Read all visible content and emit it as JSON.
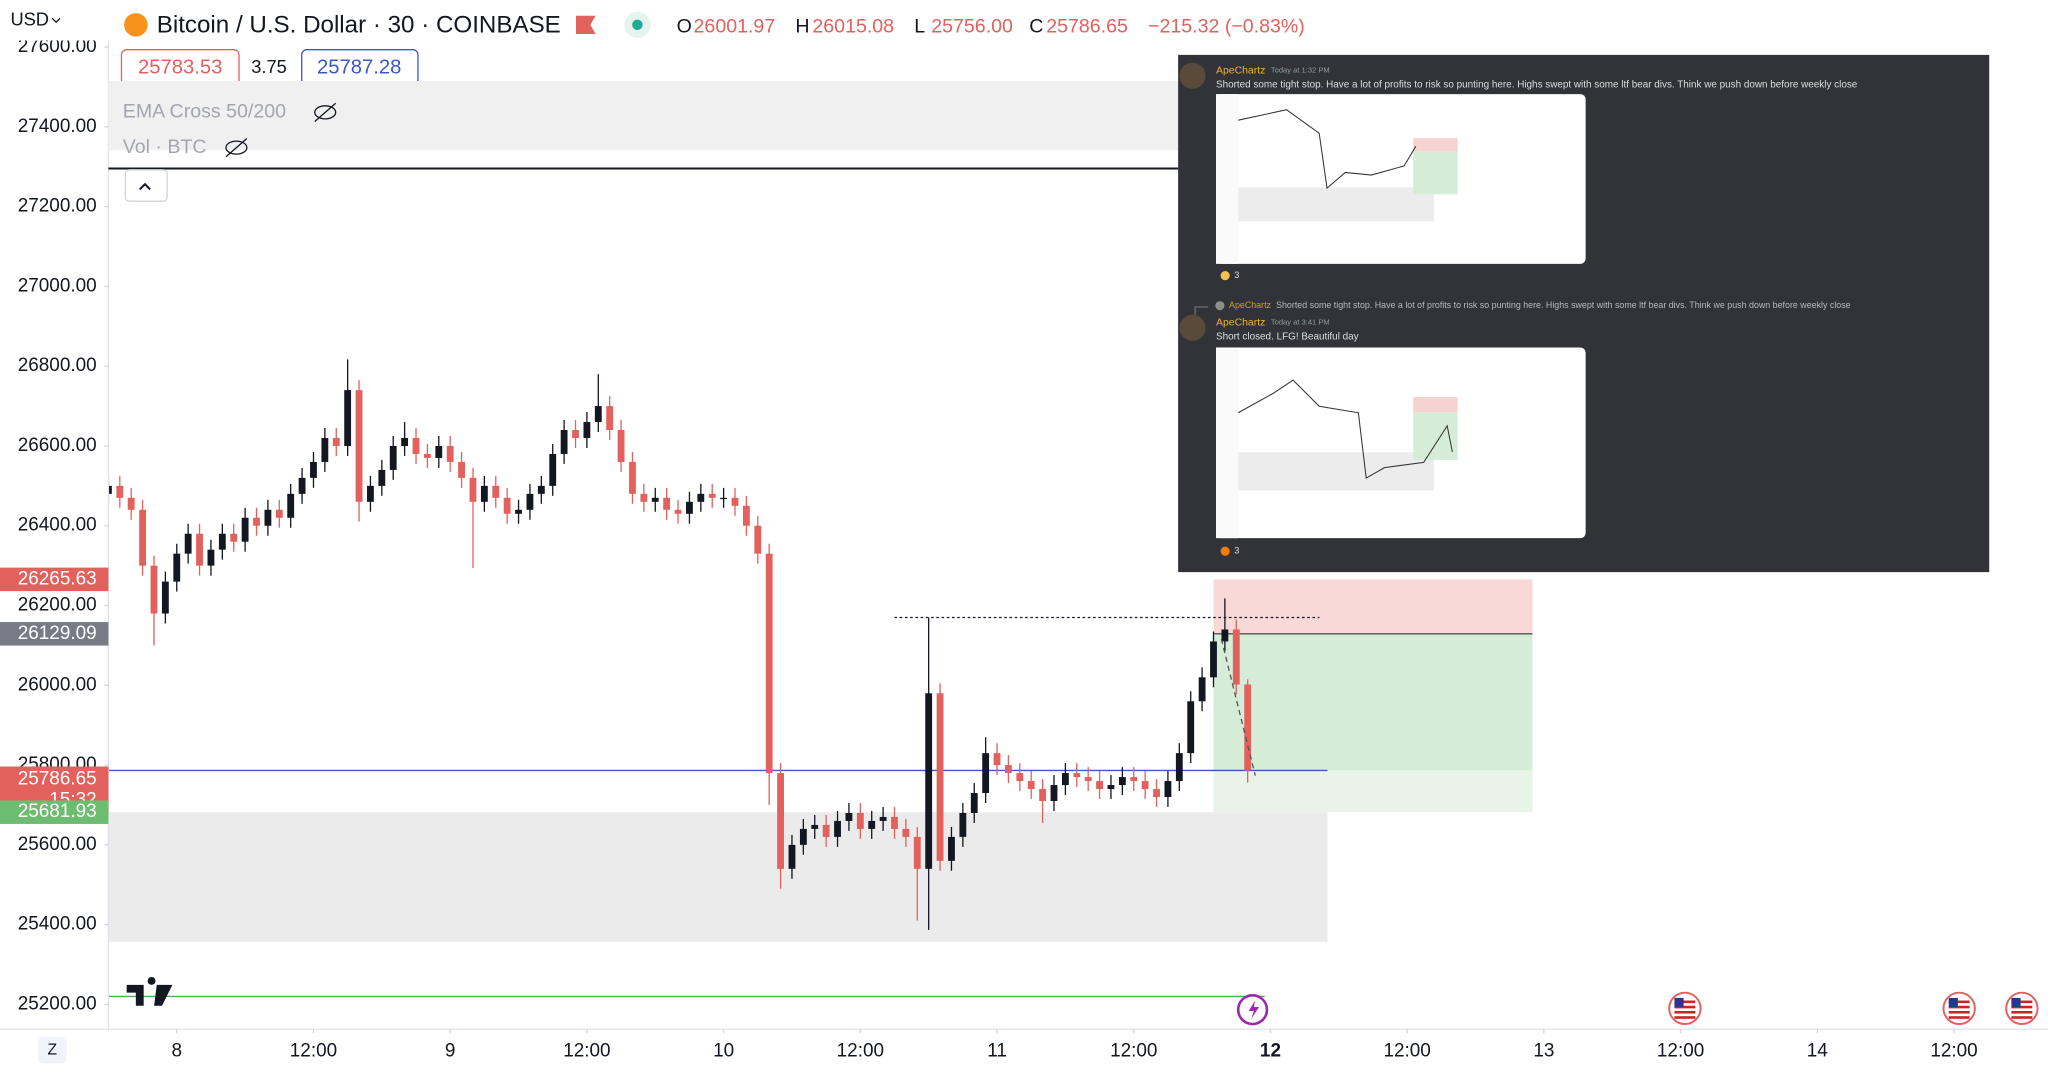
{
  "header": {
    "currency": "USD",
    "symbol": "Bitcoin / U.S. Dollar · 30 · COINBASE",
    "ohlc": [
      {
        "key": "O",
        "value": "26001.97"
      },
      {
        "key": "H",
        "value": "26015.08"
      },
      {
        "key": "L",
        "value": "25756.00"
      },
      {
        "key": "C",
        "value": "25786.65"
      }
    ],
    "change": "−215.32 (−0.83%)",
    "bid": "25783.53",
    "spread": "3.75",
    "ask": "25787.28",
    "indicators": [
      "EMA Cross 50/200",
      "Vol · BTC"
    ],
    "timezone_button": "Z"
  },
  "discord": {
    "messages": [
      {
        "author": "ApeChartz",
        "time": "Today at 1:32 PM",
        "text": "Shorted some tight stop. Have a lot of profits to risk so punting here. Highs swept with some ltf bear divs. Think we push down before weekly close",
        "reactions": "3"
      },
      {
        "reply_author": "ApeChartz",
        "reply_text": "Shorted some tight stop. Have a lot of profits to risk so punting here. Highs swept with some ltf bear divs. Think we push down before weekly close",
        "author": "ApeChartz",
        "time": "Today at 3:41 PM",
        "text": "Short closed. LFG! Beautiful day",
        "reactions": "3"
      }
    ]
  },
  "chart_data": {
    "type": "candlestick",
    "up_color": "#131722",
    "down_color": "#e2615d",
    "x": [
      -6,
      -5,
      -4,
      -3,
      -2,
      -1,
      0,
      1,
      2,
      3,
      4,
      5,
      6,
      7,
      8,
      9,
      10,
      11,
      12,
      13,
      14,
      15,
      16,
      17,
      18,
      19,
      20,
      21,
      22,
      23,
      24,
      25,
      26,
      27,
      28,
      29,
      30,
      31,
      32,
      33,
      34,
      35,
      36,
      37,
      38,
      39,
      40,
      41,
      42,
      43,
      44,
      45,
      46,
      47,
      48,
      49,
      50,
      51,
      52,
      53,
      54,
      55,
      56,
      57,
      58,
      59,
      60,
      61,
      62,
      63,
      64,
      65,
      66,
      67,
      68,
      69,
      70,
      71,
      72,
      73,
      74,
      75,
      76,
      77,
      78,
      79,
      80,
      81,
      82,
      83,
      84,
      85,
      86,
      87,
      88,
      89,
      90,
      91,
      92,
      93,
      94
    ],
    "open": [
      26480,
      26500,
      26470,
      26440,
      26300,
      26180,
      26260,
      26330,
      26380,
      26300,
      26340,
      26380,
      26360,
      26420,
      26400,
      26440,
      26420,
      26480,
      26520,
      26560,
      26620,
      26600,
      26740,
      26460,
      26500,
      26540,
      26600,
      26620,
      26580,
      26570,
      26600,
      26560,
      26520,
      26460,
      26500,
      26470,
      26430,
      26440,
      26480,
      26500,
      26580,
      26640,
      26620,
      26660,
      26700,
      26640,
      26560,
      26480,
      26460,
      26470,
      26440,
      26430,
      26460,
      26480,
      26470,
      26470,
      26450,
      26400,
      26330,
      25780,
      25540,
      25600,
      25640,
      25650,
      25620,
      25660,
      25680,
      25640,
      25660,
      25670,
      25640,
      25620,
      25540,
      25980,
      25560,
      25620,
      25680,
      25730,
      25830,
      25800,
      25780,
      25760,
      25740,
      25710,
      25750,
      25780,
      25770,
      25760,
      25740,
      25750,
      25770,
      25760,
      25740,
      25720,
      25760,
      25830,
      25960,
      26020,
      26110,
      26140,
      26001.97
    ],
    "high": [
      26525,
      26525,
      26495,
      26465,
      26325,
      26285,
      26355,
      26405,
      26405,
      26365,
      26405,
      26405,
      26445,
      26445,
      26465,
      26465,
      26505,
      26545,
      26585,
      26645,
      26645,
      26817,
      26765,
      26525,
      26565,
      26625,
      26660,
      26645,
      26605,
      26625,
      26625,
      26585,
      26545,
      26525,
      26525,
      26495,
      26465,
      26505,
      26525,
      26605,
      26665,
      26665,
      26685,
      26780,
      26725,
      26665,
      26585,
      26505,
      26495,
      26495,
      26465,
      26485,
      26505,
      26505,
      26495,
      26495,
      26475,
      26425,
      26355,
      25805,
      25625,
      25665,
      25675,
      25675,
      25685,
      25705,
      25705,
      25685,
      25695,
      25695,
      25665,
      25645,
      26170,
      26005,
      25645,
      25705,
      25755,
      25870,
      25855,
      25825,
      25805,
      25785,
      25765,
      25775,
      25805,
      25805,
      25795,
      25785,
      25775,
      25795,
      25795,
      25785,
      25765,
      25785,
      25855,
      25985,
      26045,
      26135,
      26218,
      26165,
      26015.08
    ],
    "low": [
      26455,
      26445,
      26415,
      26275,
      26100,
      26155,
      26235,
      26305,
      26275,
      26275,
      26315,
      26335,
      26335,
      26375,
      26375,
      26395,
      26395,
      26455,
      26495,
      26535,
      26575,
      26575,
      26410,
      26435,
      26475,
      26515,
      26575,
      26555,
      26545,
      26545,
      26535,
      26495,
      26294,
      26435,
      26445,
      26405,
      26405,
      26415,
      26455,
      26475,
      26555,
      26595,
      26595,
      26635,
      26615,
      26535,
      26455,
      26435,
      26435,
      26415,
      26405,
      26405,
      26435,
      26445,
      26445,
      26425,
      26375,
      26305,
      25700,
      25490,
      25515,
      25575,
      25615,
      25595,
      25595,
      25635,
      25615,
      25615,
      25635,
      25615,
      25595,
      25410,
      25387,
      25535,
      25535,
      25595,
      25655,
      25705,
      25775,
      25755,
      25735,
      25715,
      25655,
      25685,
      25725,
      25745,
      25735,
      25715,
      25715,
      25725,
      25735,
      25715,
      25695,
      25695,
      25735,
      25805,
      25935,
      25995,
      26085,
      25977,
      25756
    ],
    "close": [
      26500,
      26470,
      26440,
      26300,
      26180,
      26260,
      26330,
      26380,
      26300,
      26340,
      26380,
      26360,
      26420,
      26400,
      26440,
      26420,
      26480,
      26520,
      26560,
      26620,
      26600,
      26740,
      26460,
      26500,
      26540,
      26600,
      26620,
      26580,
      26570,
      26600,
      26560,
      26520,
      26460,
      26500,
      26470,
      26430,
      26440,
      26480,
      26500,
      26580,
      26640,
      26620,
      26660,
      26700,
      26640,
      26560,
      26480,
      26460,
      26470,
      26440,
      26430,
      26460,
      26480,
      26470,
      26470,
      26450,
      26400,
      26330,
      25780,
      25540,
      25600,
      25640,
      25650,
      25620,
      25660,
      25680,
      25640,
      25660,
      25670,
      25640,
      25620,
      25540,
      25980,
      25560,
      25620,
      25680,
      25730,
      25830,
      25800,
      25780,
      25760,
      25740,
      25710,
      25750,
      25780,
      25770,
      25760,
      25740,
      25750,
      25770,
      25760,
      25740,
      25720,
      25760,
      25830,
      25960,
      26020,
      26110,
      26140,
      26001.97,
      25786.65
    ],
    "xlim": [
      -6,
      164.25
    ],
    "xticks": [
      {
        "value": 0,
        "label": "8"
      },
      {
        "value": 12,
        "label": "12:00"
      },
      {
        "value": 24,
        "label": "9"
      },
      {
        "value": 36,
        "label": "12:00"
      },
      {
        "value": 48,
        "label": "10"
      },
      {
        "value": 60,
        "label": "12:00"
      },
      {
        "value": 72,
        "label": "11"
      },
      {
        "value": 84,
        "label": "12:00"
      },
      {
        "value": 96,
        "label": "12"
      },
      {
        "value": 108,
        "label": "12:00"
      },
      {
        "value": 120,
        "label": "13"
      },
      {
        "value": 132,
        "label": "12:00"
      },
      {
        "value": 144,
        "label": "14"
      },
      {
        "value": 156,
        "label": "12:00"
      }
    ],
    "ylim": [
      25137.8,
      27717.9
    ],
    "yticks": [
      {
        "value": 25200,
        "label": "25200.00"
      },
      {
        "value": 25400,
        "label": "25400.00"
      },
      {
        "value": 25600,
        "label": "25600.00"
      },
      {
        "value": 25800,
        "label": "25800.00"
      },
      {
        "value": 26000,
        "label": "26000.00"
      },
      {
        "value": 26200,
        "label": "26200.00"
      },
      {
        "value": 26400,
        "label": "26400.00"
      },
      {
        "value": 26600,
        "label": "26600.00"
      },
      {
        "value": 26800,
        "label": "26800.00"
      },
      {
        "value": 27000,
        "label": "27000.00"
      },
      {
        "value": 27200,
        "label": "27200.00"
      },
      {
        "value": 27400,
        "label": "27400.00"
      },
      {
        "value": 27600,
        "label": "27600.00"
      }
    ],
    "price_tags": [
      {
        "value": 26265.63,
        "color": "#e2615d"
      },
      {
        "value": 26129.09,
        "color": "#787b86"
      },
      {
        "value": 25786.65,
        "color": "#e2615d"
      },
      {
        "value": 25681.93,
        "color": "#6cbd70"
      }
    ],
    "countdown": "15:32",
    "last_price": {
      "value": 25786.65,
      "color": "#3d57c9"
    },
    "position": {
      "start": 91,
      "end": 119,
      "stop": 26265.63,
      "entry": 26129.09,
      "current": 25786.65,
      "target": 25681.93
    },
    "range_box": {
      "start": -6,
      "end": 101,
      "top": 25681.93,
      "bottom": 25357
    },
    "dotted_level": {
      "start": 63,
      "end": 100.3,
      "value": 26170
    },
    "green_level": {
      "start": -6,
      "end": 95.5,
      "value": 25220,
      "color": "#4caf50"
    }
  }
}
